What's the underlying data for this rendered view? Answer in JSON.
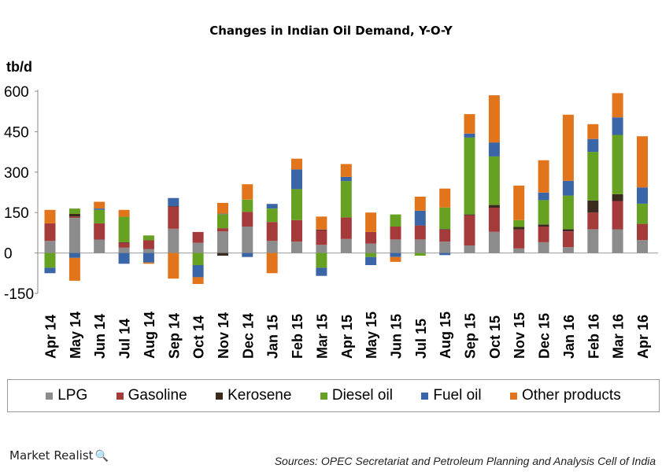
{
  "chart_data": {
    "type": "bar",
    "stacked": true,
    "title": "Changes in Indian Oil Demand, Y-O-Y",
    "ylabel": "tb/d",
    "xlabel": "",
    "ylim": [
      -150,
      600
    ],
    "yticks": [
      600,
      450,
      300,
      150,
      0,
      -150
    ],
    "categories": [
      "Apr 14",
      "May 14",
      "Jun 14",
      "Jul 14",
      "Aug 14",
      "Sep 14",
      "Oct 14",
      "Nov 14",
      "Dec 14",
      "Jan 15",
      "Feb 15",
      "Mar 15",
      "Apr 15",
      "May 15",
      "Jun 15",
      "Jul 15",
      "Aug 15",
      "Sep 15",
      "Oct 15",
      "Nov 15",
      "Dec 15",
      "Jan 16",
      "Feb 16",
      "Mar 16",
      "Apr 16"
    ],
    "series": [
      {
        "name": "LPG",
        "color": "#8c8c8c",
        "values": [
          45,
          130,
          50,
          20,
          15,
          90,
          38,
          80,
          98,
          45,
          42,
          30,
          52,
          35,
          50,
          50,
          42,
          28,
          78,
          17,
          40,
          22,
          88,
          88,
          48
        ]
      },
      {
        "name": "Gasoline",
        "color": "#a53a3b",
        "values": [
          65,
          5,
          60,
          18,
          32,
          82,
          40,
          12,
          55,
          70,
          80,
          55,
          80,
          43,
          48,
          52,
          45,
          112,
          90,
          70,
          58,
          58,
          62,
          105,
          60
        ]
      },
      {
        "name": "Kerosene",
        "color": "#3b2a1e",
        "values": [
          0,
          10,
          0,
          2,
          0,
          2,
          0,
          -10,
          0,
          0,
          0,
          2,
          0,
          0,
          0,
          0,
          2,
          3,
          10,
          10,
          8,
          8,
          45,
          25,
          0
        ]
      },
      {
        "name": "Diesel oil",
        "color": "#66a122",
        "values": [
          -55,
          20,
          50,
          95,
          18,
          0,
          -45,
          52,
          45,
          50,
          115,
          -55,
          135,
          -15,
          45,
          -10,
          80,
          285,
          180,
          25,
          90,
          125,
          180,
          220,
          75
        ]
      },
      {
        "name": "Fuel oil",
        "color": "#3a65a6",
        "values": [
          -20,
          -18,
          5,
          -40,
          -35,
          30,
          -45,
          2,
          -15,
          17,
          73,
          -30,
          15,
          -30,
          -15,
          55,
          -8,
          15,
          52,
          0,
          28,
          55,
          48,
          65,
          60
        ]
      },
      {
        "name": "Other products",
        "color": "#e2751c",
        "values": [
          50,
          -85,
          25,
          25,
          -5,
          -95,
          -25,
          40,
          57,
          -75,
          40,
          48,
          48,
          72,
          -18,
          52,
          70,
          72,
          175,
          128,
          120,
          245,
          55,
          90,
          190
        ]
      }
    ],
    "legend": "bottom",
    "grid": false
  },
  "brand": {
    "name": "Market Realist",
    "mark": "🔍"
  },
  "source": "Sources: OPEC Secretariat and Petroleum Planning and Analysis Cell of India"
}
